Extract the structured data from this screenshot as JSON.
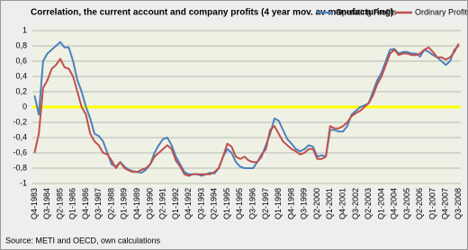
{
  "chart_data": {
    "type": "line",
    "title": "Correlation, the current account  and  company profits (4 year mov. av manufacturing)",
    "source": "Source: METI and OECD, own calculations",
    "categories": [
      "Q4-1983",
      null,
      null,
      "Q3-1984",
      null,
      null,
      "Q2-1985",
      null,
      null,
      "Q1-1986",
      null,
      null,
      "Q4-1986",
      null,
      null,
      "Q3-1987",
      null,
      null,
      "Q2-1988",
      null,
      null,
      "Q1-1989",
      null,
      null,
      "Q4-1989",
      null,
      null,
      "Q3-1990",
      null,
      null,
      "Q2-1991",
      null,
      null,
      "Q1-1992",
      null,
      null,
      "Q4-1992",
      null,
      null,
      "Q3-1993",
      null,
      null,
      "Q2-1994",
      null,
      null,
      "Q1-1995",
      null,
      null,
      "Q4-1995",
      null,
      null,
      "Q3-1996",
      null,
      null,
      "Q2-1997",
      null,
      null,
      "Q1-1998",
      null,
      null,
      "Q4-1998",
      null,
      null,
      "Q3-1999",
      null,
      null,
      "Q2-2000",
      null,
      null,
      "Q1-2001",
      null,
      null,
      "Q4-2001",
      null,
      null,
      "Q3-2002",
      null,
      null,
      "Q2-2003",
      null,
      null,
      "Q1-2004",
      null,
      null,
      "Q4-2004",
      null,
      null,
      "Q3-2005",
      null,
      null,
      "Q2-2006",
      null,
      null,
      "Q1-2007",
      null,
      null,
      "Q4-2007",
      null,
      null,
      "Q3-2008"
    ],
    "series": [
      {
        "name": "Operating Profits",
        "color": "#4f81bd",
        "values": [
          0.15,
          -0.1,
          0.6,
          0.7,
          0.75,
          0.8,
          0.85,
          0.78,
          0.78,
          0.6,
          0.35,
          0.2,
          0.0,
          -0.15,
          -0.35,
          -0.38,
          -0.45,
          -0.6,
          -0.75,
          -0.78,
          -0.72,
          -0.78,
          -0.82,
          -0.84,
          -0.85,
          -0.86,
          -0.82,
          -0.75,
          -0.6,
          -0.5,
          -0.42,
          -0.4,
          -0.5,
          -0.65,
          -0.75,
          -0.85,
          -0.88,
          -0.88,
          -0.88,
          -0.9,
          -0.88,
          -0.86,
          -0.87,
          -0.8,
          -0.65,
          -0.55,
          -0.6,
          -0.72,
          -0.78,
          -0.8,
          -0.8,
          -0.8,
          -0.72,
          -0.65,
          -0.5,
          -0.35,
          -0.15,
          -0.18,
          -0.3,
          -0.42,
          -0.48,
          -0.55,
          -0.58,
          -0.55,
          -0.5,
          -0.52,
          -0.65,
          -0.63,
          -0.65,
          -0.3,
          -0.3,
          -0.32,
          -0.32,
          -0.25,
          -0.1,
          -0.05,
          0.0,
          0.02,
          0.05,
          0.2,
          0.35,
          0.45,
          0.6,
          0.75,
          0.76,
          0.7,
          0.72,
          0.72,
          0.7,
          0.7,
          0.66,
          0.75,
          0.72,
          0.68,
          0.65,
          0.6,
          0.55,
          0.6,
          0.75,
          0.8
        ]
      },
      {
        "name": "Ordinary Profits",
        "color": "#c0504d",
        "values": [
          -0.6,
          -0.35,
          0.25,
          0.35,
          0.5,
          0.55,
          0.63,
          0.52,
          0.5,
          0.4,
          0.2,
          0.0,
          -0.1,
          -0.35,
          -0.45,
          -0.5,
          -0.6,
          -0.62,
          -0.7,
          -0.8,
          -0.72,
          -0.8,
          -0.83,
          -0.85,
          -0.85,
          -0.82,
          -0.8,
          -0.75,
          -0.65,
          -0.6,
          -0.55,
          -0.5,
          -0.55,
          -0.7,
          -0.78,
          -0.88,
          -0.9,
          -0.88,
          -0.88,
          -0.88,
          -0.88,
          -0.88,
          -0.85,
          -0.8,
          -0.65,
          -0.48,
          -0.52,
          -0.65,
          -0.68,
          -0.65,
          -0.7,
          -0.72,
          -0.72,
          -0.62,
          -0.55,
          -0.3,
          -0.25,
          -0.35,
          -0.45,
          -0.5,
          -0.55,
          -0.58,
          -0.62,
          -0.6,
          -0.55,
          -0.55,
          -0.68,
          -0.68,
          -0.65,
          -0.25,
          -0.28,
          -0.28,
          -0.25,
          -0.2,
          -0.12,
          -0.08,
          -0.05,
          0.0,
          0.05,
          0.15,
          0.3,
          0.4,
          0.55,
          0.7,
          0.75,
          0.68,
          0.7,
          0.7,
          0.68,
          0.68,
          0.7,
          0.75,
          0.78,
          0.72,
          0.65,
          0.65,
          0.62,
          0.65,
          0.72,
          0.83
        ]
      }
    ],
    "ylim": [
      -1,
      1
    ],
    "yticks": [
      -1,
      {
        "value": -0.8,
        "label": "-0,8"
      },
      {
        "value": -0.6,
        "label": "-0,6"
      },
      {
        "value": -0.4,
        "label": "-0,4"
      },
      {
        "value": -0.2,
        "label": "-0,2"
      },
      0,
      {
        "value": 0.2,
        "label": "0,2"
      },
      {
        "value": 0.4,
        "label": "0,4"
      },
      {
        "value": 0.6,
        "label": "0,6"
      },
      {
        "value": 0.8,
        "label": "0,8"
      },
      1
    ],
    "grid": true,
    "zero_line_color": "#ffff00",
    "legend": "top-right"
  }
}
